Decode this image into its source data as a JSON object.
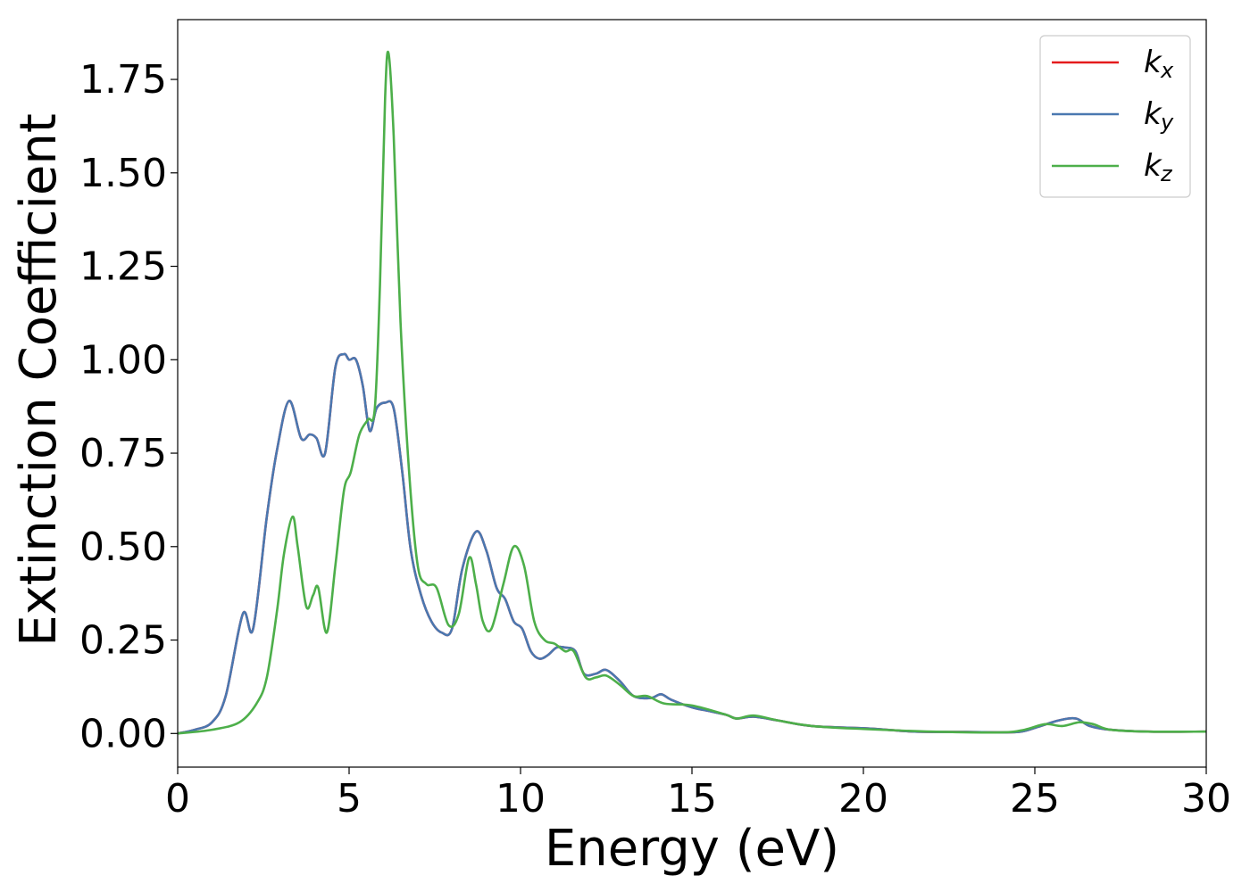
{
  "chart_data": {
    "type": "line",
    "title": "",
    "xlabel": "Energy (eV)",
    "ylabel": "Extinction Coefficient",
    "xlim": [
      0,
      30
    ],
    "ylim": [
      -0.09,
      1.91
    ],
    "xticks": [
      0,
      5,
      10,
      15,
      20,
      25,
      30
    ],
    "xtick_labels": [
      "0",
      "5",
      "10",
      "15",
      "20",
      "25",
      "30"
    ],
    "yticks": [
      0.0,
      0.25,
      0.5,
      0.75,
      1.0,
      1.25,
      1.5,
      1.75
    ],
    "ytick_labels": [
      "0.00",
      "0.25",
      "0.50",
      "0.75",
      "1.00",
      "1.25",
      "1.50",
      "1.75"
    ],
    "grid": false,
    "legend_position": "top-right",
    "series": [
      {
        "name": "k_x",
        "legend_base": "k",
        "legend_sub": "x",
        "color": "#e41a1c",
        "x": [
          0,
          0.5,
          1.0,
          1.4,
          1.9,
          2.2,
          2.6,
          2.9,
          3.25,
          3.6,
          3.85,
          4.05,
          4.3,
          4.6,
          4.85,
          5.0,
          5.2,
          5.4,
          5.6,
          5.8,
          6.05,
          6.3,
          6.55,
          6.8,
          7.1,
          7.4,
          7.7,
          8.0,
          8.3,
          8.7,
          9.0,
          9.3,
          9.55,
          9.8,
          10.05,
          10.3,
          10.55,
          10.8,
          11.05,
          11.3,
          11.6,
          11.85,
          12.2,
          12.5,
          12.9,
          13.3,
          13.8,
          14.1,
          14.4,
          15.0,
          15.5,
          16.0,
          16.3,
          16.8,
          17.5,
          18.5,
          20.2,
          21.5,
          23.0,
          24.0,
          24.6,
          25.1,
          25.7,
          26.2,
          26.6,
          27.2,
          28.3,
          30.0
        ],
        "y": [
          0.0,
          0.01,
          0.03,
          0.1,
          0.32,
          0.28,
          0.58,
          0.76,
          0.89,
          0.79,
          0.8,
          0.79,
          0.75,
          0.98,
          1.015,
          1.0,
          1.0,
          0.93,
          0.81,
          0.87,
          0.885,
          0.87,
          0.7,
          0.49,
          0.37,
          0.3,
          0.27,
          0.28,
          0.44,
          0.54,
          0.49,
          0.39,
          0.36,
          0.3,
          0.28,
          0.22,
          0.2,
          0.21,
          0.23,
          0.23,
          0.22,
          0.16,
          0.16,
          0.17,
          0.14,
          0.1,
          0.095,
          0.105,
          0.09,
          0.07,
          0.06,
          0.05,
          0.04,
          0.045,
          0.035,
          0.02,
          0.013,
          0.005,
          0.004,
          0.003,
          0.005,
          0.018,
          0.035,
          0.04,
          0.02,
          0.01,
          0.005,
          0.005
        ]
      },
      {
        "name": "k_y",
        "legend_base": "k",
        "legend_sub": "y",
        "color": "#4a78b0",
        "x": [
          0,
          0.5,
          1.0,
          1.4,
          1.9,
          2.2,
          2.6,
          2.9,
          3.25,
          3.6,
          3.85,
          4.05,
          4.3,
          4.6,
          4.85,
          5.0,
          5.2,
          5.4,
          5.6,
          5.8,
          6.05,
          6.3,
          6.55,
          6.8,
          7.1,
          7.4,
          7.7,
          8.0,
          8.3,
          8.7,
          9.0,
          9.3,
          9.55,
          9.8,
          10.05,
          10.3,
          10.55,
          10.8,
          11.05,
          11.3,
          11.6,
          11.85,
          12.2,
          12.5,
          12.9,
          13.3,
          13.8,
          14.1,
          14.4,
          15.0,
          15.5,
          16.0,
          16.3,
          16.8,
          17.5,
          18.5,
          20.2,
          21.5,
          23.0,
          24.0,
          24.6,
          25.1,
          25.7,
          26.2,
          26.6,
          27.2,
          28.3,
          30.0
        ],
        "y": [
          0.0,
          0.01,
          0.03,
          0.1,
          0.32,
          0.28,
          0.58,
          0.76,
          0.89,
          0.79,
          0.8,
          0.79,
          0.75,
          0.98,
          1.015,
          1.0,
          1.0,
          0.93,
          0.81,
          0.87,
          0.885,
          0.87,
          0.7,
          0.49,
          0.37,
          0.3,
          0.27,
          0.28,
          0.44,
          0.54,
          0.49,
          0.39,
          0.36,
          0.3,
          0.28,
          0.22,
          0.2,
          0.21,
          0.23,
          0.23,
          0.22,
          0.16,
          0.16,
          0.17,
          0.14,
          0.1,
          0.095,
          0.105,
          0.09,
          0.07,
          0.06,
          0.05,
          0.04,
          0.045,
          0.035,
          0.02,
          0.013,
          0.005,
          0.004,
          0.003,
          0.005,
          0.018,
          0.035,
          0.04,
          0.02,
          0.01,
          0.005,
          0.005
        ]
      },
      {
        "name": "k_z",
        "legend_base": "k",
        "legend_sub": "z",
        "color": "#4daf4a",
        "x": [
          0,
          1.0,
          1.8,
          2.3,
          2.6,
          2.9,
          3.1,
          3.35,
          3.5,
          3.75,
          3.95,
          4.1,
          4.35,
          4.6,
          4.85,
          5.05,
          5.3,
          5.55,
          5.75,
          5.9,
          6.05,
          6.15,
          6.3,
          6.5,
          6.75,
          7.0,
          7.25,
          7.55,
          7.9,
          8.2,
          8.5,
          8.7,
          8.9,
          9.15,
          9.5,
          9.8,
          10.1,
          10.4,
          10.7,
          11.0,
          11.3,
          11.55,
          11.9,
          12.2,
          12.5,
          12.9,
          13.3,
          13.7,
          14.2,
          15.0,
          16.0,
          16.3,
          16.8,
          17.5,
          18.5,
          20.0,
          22.0,
          24.0,
          24.7,
          25.3,
          25.8,
          26.3,
          26.7,
          27.2,
          28.3,
          30.0
        ],
        "y": [
          0.0,
          0.01,
          0.03,
          0.08,
          0.15,
          0.33,
          0.48,
          0.58,
          0.5,
          0.34,
          0.37,
          0.39,
          0.27,
          0.45,
          0.65,
          0.7,
          0.8,
          0.84,
          0.87,
          1.2,
          1.7,
          1.82,
          1.6,
          1.1,
          0.7,
          0.45,
          0.4,
          0.39,
          0.29,
          0.32,
          0.47,
          0.4,
          0.3,
          0.28,
          0.4,
          0.5,
          0.45,
          0.3,
          0.25,
          0.24,
          0.22,
          0.22,
          0.15,
          0.15,
          0.155,
          0.13,
          0.1,
          0.1,
          0.08,
          0.075,
          0.05,
          0.04,
          0.048,
          0.035,
          0.02,
          0.012,
          0.005,
          0.003,
          0.01,
          0.025,
          0.02,
          0.03,
          0.025,
          0.01,
          0.005,
          0.005
        ]
      }
    ]
  }
}
